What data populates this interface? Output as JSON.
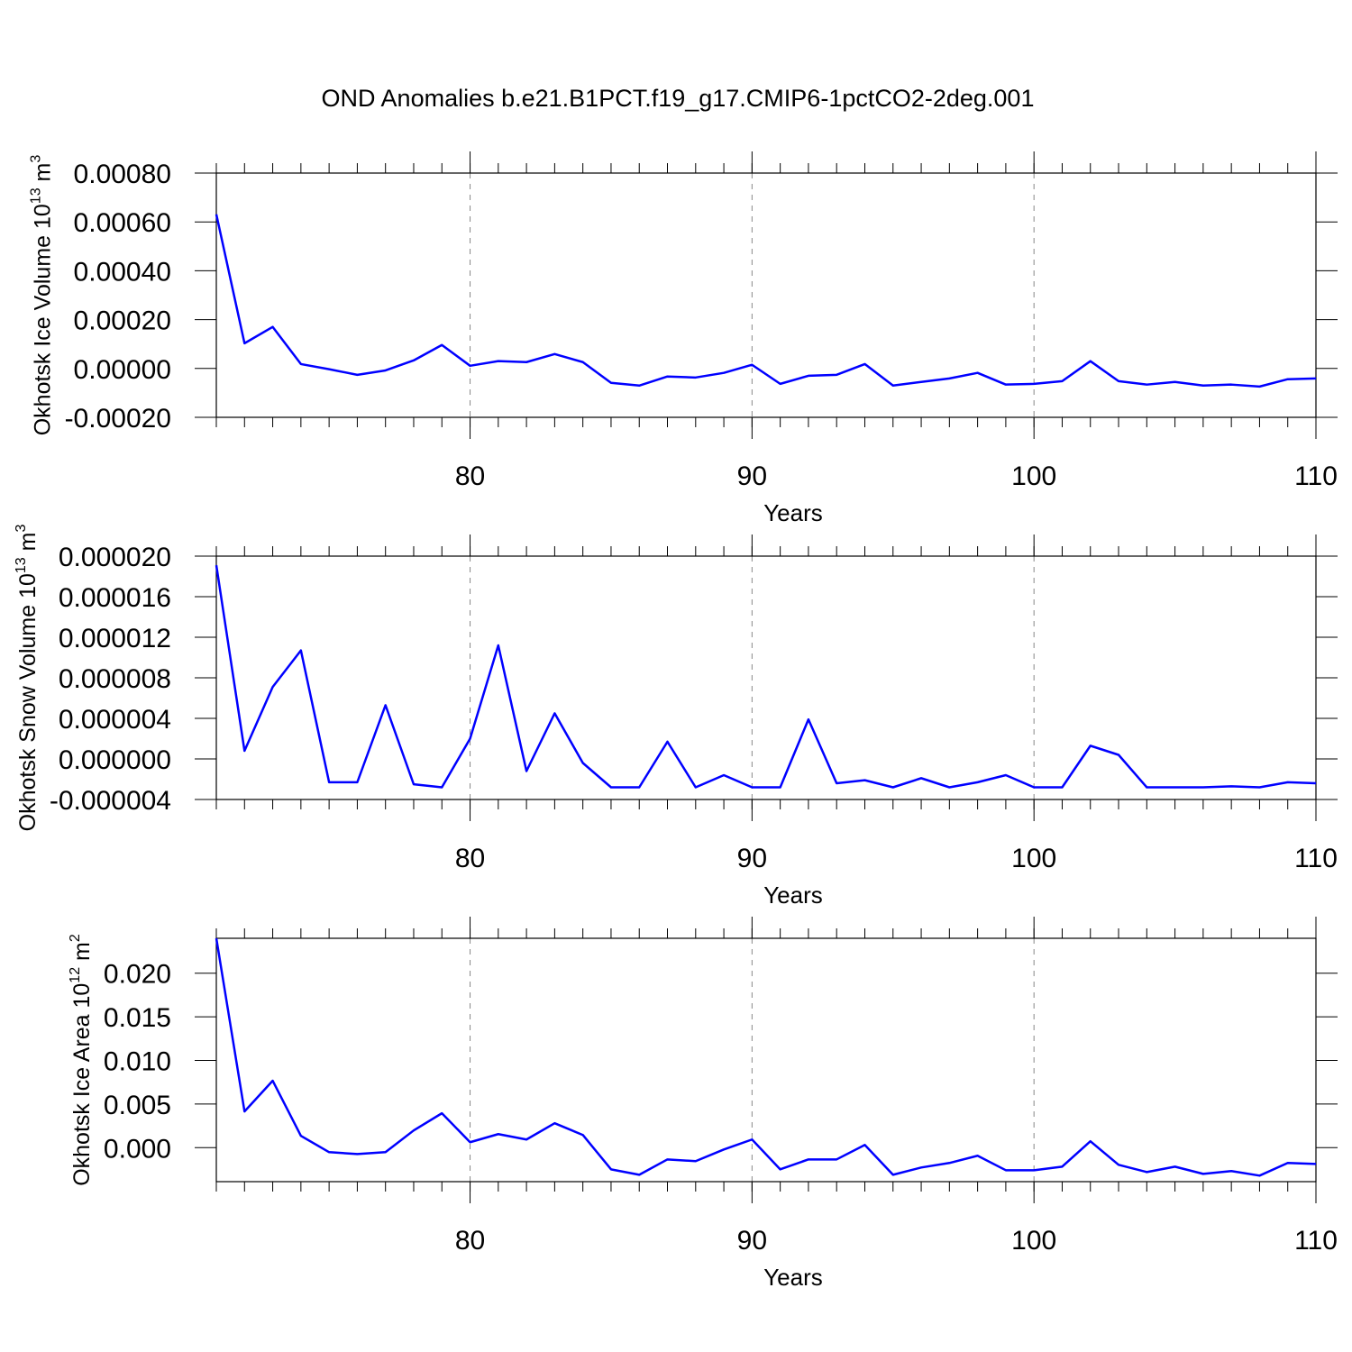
{
  "chart_data": [
    {
      "type": "line",
      "title": "OND Anomalies b.e21.B1PCT.f19_g17.CMIP6-1pctCO2-2deg.001",
      "xlabel": "Years",
      "ylabel": [
        "Okhotsk Ice Volume 10",
        "13",
        " m",
        "3"
      ],
      "x": [
        71,
        72,
        73,
        74,
        75,
        76,
        77,
        78,
        79,
        80,
        81,
        82,
        83,
        84,
        85,
        86,
        87,
        88,
        89,
        90,
        91,
        92,
        93,
        94,
        95,
        96,
        97,
        98,
        99,
        100,
        101,
        102,
        103,
        104,
        105,
        106,
        107,
        108,
        109,
        110
      ],
      "xlim": [
        71,
        110
      ],
      "xticks": [
        80,
        90,
        100,
        110
      ],
      "grid": true,
      "ylim": [
        -0.0002,
        0.0008
      ],
      "yticks": [
        {
          "value": -0.0002,
          "label": "-0.00020"
        },
        {
          "value": 0,
          "label": "0.00000"
        },
        {
          "value": 0.0002,
          "label": "0.00020"
        },
        {
          "value": 0.0004,
          "label": "0.00040"
        },
        {
          "value": 0.0006,
          "label": "0.00060"
        },
        {
          "value": 0.0008,
          "label": "0.00080"
        }
      ],
      "series": [
        {
          "color": "#0000ff",
          "values": [
            0.000631,
            0.000103,
            0.00017,
            1.8e-05,
            -3e-06,
            -2.6e-05,
            -8e-06,
            3.3e-05,
            9.6e-05,
            1.1e-05,
            3e-05,
            2.6e-05,
            5.9e-05,
            2.6e-05,
            -5.9e-05,
            -7e-05,
            -3.3e-05,
            -3.7e-05,
            -1.8e-05,
            1.5e-05,
            -6.3e-05,
            -3e-05,
            -2.6e-05,
            1.8e-05,
            -7e-05,
            -5.5e-05,
            -4.1e-05,
            -1.8e-05,
            -6.6e-05,
            -6.3e-05,
            -5.2e-05,
            3e-05,
            -5.2e-05,
            -6.6e-05,
            -5.5e-05,
            -7e-05,
            -6.6e-05,
            -7.4e-05,
            -4.4e-05,
            -4.1e-05
          ]
        }
      ]
    },
    {
      "type": "line",
      "xlabel": "Years",
      "ylabel": [
        "Okhotsk Snow Volume 10",
        "13",
        " m",
        "3"
      ],
      "x": [
        71,
        72,
        73,
        74,
        75,
        76,
        77,
        78,
        79,
        80,
        81,
        82,
        83,
        84,
        85,
        86,
        87,
        88,
        89,
        90,
        91,
        92,
        93,
        94,
        95,
        96,
        97,
        98,
        99,
        100,
        101,
        102,
        103,
        104,
        105,
        106,
        107,
        108,
        109,
        110
      ],
      "xlim": [
        71,
        110
      ],
      "xticks": [
        80,
        90,
        100,
        110
      ],
      "grid": true,
      "ylim": [
        -4e-06,
        2e-05
      ],
      "yticks": [
        {
          "value": -4e-06,
          "label": "-0.000004"
        },
        {
          "value": 0,
          "label": "0.000000"
        },
        {
          "value": 4e-06,
          "label": "0.000004"
        },
        {
          "value": 8e-06,
          "label": "0.000008"
        },
        {
          "value": 1.2e-05,
          "label": "0.000012"
        },
        {
          "value": 1.6e-05,
          "label": "0.000016"
        },
        {
          "value": 2e-05,
          "label": "0.000020"
        }
      ],
      "series": [
        {
          "color": "#0000ff",
          "values": [
            1.91e-05,
            8e-07,
            7.1e-06,
            1.07e-05,
            -2.3e-06,
            -2.3e-06,
            5.3e-06,
            -2.5e-06,
            -2.8e-06,
            2e-06,
            1.12e-05,
            -1.2e-06,
            4.5e-06,
            -4e-07,
            -2.8e-06,
            -2.8e-06,
            1.7e-06,
            -2.8e-06,
            -1.6e-06,
            -2.8e-06,
            -2.8e-06,
            3.9e-06,
            -2.4e-06,
            -2.1e-06,
            -2.8e-06,
            -1.9e-06,
            -2.8e-06,
            -2.3e-06,
            -1.6e-06,
            -2.8e-06,
            -2.8e-06,
            1.3e-06,
            4e-07,
            -2.8e-06,
            -2.8e-06,
            -2.8e-06,
            -2.7e-06,
            -2.8e-06,
            -2.3e-06,
            -2.4e-06
          ]
        }
      ]
    },
    {
      "type": "line",
      "xlabel": "Years",
      "ylabel": [
        "Okhotsk Ice Area 10",
        "12",
        " m",
        "2"
      ],
      "x": [
        71,
        72,
        73,
        74,
        75,
        76,
        77,
        78,
        79,
        80,
        81,
        82,
        83,
        84,
        85,
        86,
        87,
        88,
        89,
        90,
        91,
        92,
        93,
        94,
        95,
        96,
        97,
        98,
        99,
        100,
        101,
        102,
        103,
        104,
        105,
        106,
        107,
        108,
        109,
        110
      ],
      "xlim": [
        71,
        110
      ],
      "xticks": [
        80,
        90,
        100,
        110
      ],
      "grid": true,
      "ylim": [
        -0.0039,
        0.024
      ],
      "yticks": [
        {
          "value": 0,
          "label": "0.000"
        },
        {
          "value": 0.005,
          "label": "0.005"
        },
        {
          "value": 0.01,
          "label": "0.010"
        },
        {
          "value": 0.015,
          "label": "0.015"
        },
        {
          "value": 0.02,
          "label": "0.020"
        }
      ],
      "series": [
        {
          "color": "#0000ff",
          "values": [
            0.024,
            0.00415,
            0.00767,
            0.00135,
            -0.00052,
            -0.00073,
            -0.00052,
            0.00197,
            0.00394,
            0.00062,
            0.00155,
            0.00093,
            0.0028,
            0.00145,
            -0.00249,
            -0.00311,
            -0.00135,
            -0.00155,
            -0.00021,
            0.00093,
            -0.00249,
            -0.00135,
            -0.00135,
            0.00031,
            -0.00311,
            -0.00228,
            -0.00176,
            -0.00093,
            -0.00259,
            -0.00259,
            -0.00218,
            0.00073,
            -0.00197,
            -0.0028,
            -0.00218,
            -0.00301,
            -0.00269,
            -0.00321,
            -0.00176,
            -0.00187
          ]
        }
      ]
    }
  ]
}
